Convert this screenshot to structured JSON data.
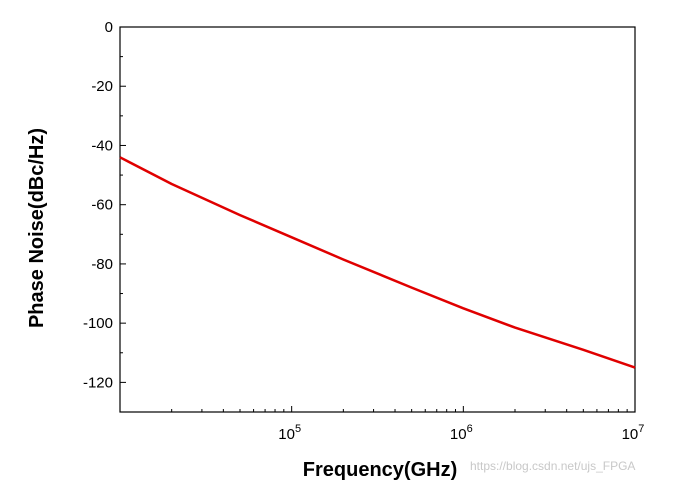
{
  "chart_data": {
    "type": "line",
    "xlabel": "Frequency(GHz)",
    "ylabel": "Phase Noise(dBc/Hz)",
    "x_scale": "log",
    "xlim": [
      10000,
      10000000
    ],
    "ylim": [
      -130,
      0
    ],
    "x_ticks": [
      {
        "value": 100000,
        "base": "10",
        "exp": "5"
      },
      {
        "value": 1000000,
        "base": "10",
        "exp": "6"
      },
      {
        "value": 10000000,
        "base": "10",
        "exp": "7"
      }
    ],
    "y_ticks": [
      0,
      -20,
      -40,
      -60,
      -80,
      -100,
      -120
    ],
    "y_tick_labels": [
      "0",
      "-20",
      "-40",
      "-60",
      "-80",
      "-100",
      "-120"
    ],
    "grid": false,
    "legend": "none",
    "series": [
      {
        "color": "#e00000",
        "x": [
          10000,
          20000,
          50000,
          100000,
          200000,
          500000,
          1000000,
          2000000,
          5000000,
          10000000
        ],
        "y": [
          -44,
          -53,
          -63.5,
          -71,
          -78.5,
          -88,
          -95,
          -101.5,
          -109,
          -115
        ]
      }
    ]
  },
  "watermark": "https://blog.csdn.net/ujs_FPGA"
}
